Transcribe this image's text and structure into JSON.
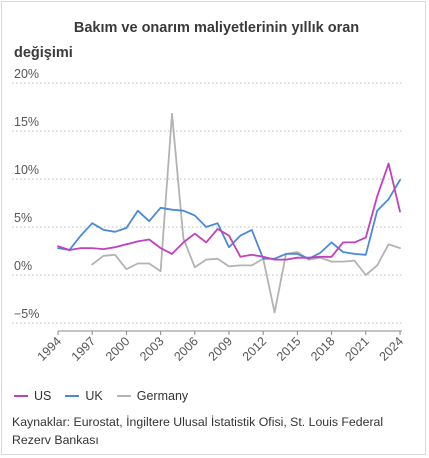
{
  "title_line1": "Bakım ve onarım maliyetlerinin yıllık oran",
  "title_line2": "değişimi",
  "source": "Kaynaklar: Eurostat, İngiltere Ulusal İstatistik Ofisi, St. Louis Federal Rezerv Bankası",
  "chart_data": {
    "type": "line",
    "title": "Bakım ve onarım maliyetlerinin yıllık oran değişimi",
    "xlabel": "",
    "ylabel": "",
    "xlim": [
      1994,
      2024
    ],
    "ylim": [
      -5,
      20
    ],
    "x_ticks": [
      "1994",
      "1997",
      "2000",
      "2003",
      "2006",
      "2009",
      "2012",
      "2015",
      "2018",
      "2021",
      "2024"
    ],
    "y_ticks": [
      {
        "v": 20,
        "label": "20%"
      },
      {
        "v": 15,
        "label": "15%"
      },
      {
        "v": 10,
        "label": "10%"
      },
      {
        "v": 5,
        "label": "5%"
      },
      {
        "v": 0,
        "label": "0%"
      },
      {
        "v": -5,
        "label": "−5%"
      }
    ],
    "legend_position": "bottom-left",
    "grid": "horizontal-dotted",
    "series": [
      {
        "name": "US",
        "color": "#c23fbf",
        "points": [
          [
            1994,
            3.0
          ],
          [
            1995,
            2.6
          ],
          [
            1996,
            2.8
          ],
          [
            1997,
            2.8
          ],
          [
            1998,
            2.7
          ],
          [
            1999,
            2.9
          ],
          [
            2000,
            3.2
          ],
          [
            2001,
            3.5
          ],
          [
            2002,
            3.7
          ],
          [
            2003,
            2.8
          ],
          [
            2004,
            2.2
          ],
          [
            2005,
            3.4
          ],
          [
            2006,
            4.3
          ],
          [
            2007,
            3.4
          ],
          [
            2008,
            4.8
          ],
          [
            2009,
            4.1
          ],
          [
            2010,
            1.9
          ],
          [
            2011,
            2.1
          ],
          [
            2012,
            1.9
          ],
          [
            2013,
            1.6
          ],
          [
            2014,
            1.6
          ],
          [
            2015,
            1.8
          ],
          [
            2016,
            1.8
          ],
          [
            2017,
            1.9
          ],
          [
            2018,
            1.9
          ],
          [
            2019,
            3.4
          ],
          [
            2020,
            3.4
          ],
          [
            2021,
            3.9
          ],
          [
            2022,
            8.2
          ],
          [
            2023,
            11.6
          ],
          [
            2024,
            6.6
          ]
        ]
      },
      {
        "name": "UK",
        "color": "#4a8ad8",
        "points": [
          [
            1994,
            2.8
          ],
          [
            1995,
            2.6
          ],
          [
            1996,
            4.1
          ],
          [
            1997,
            5.4
          ],
          [
            1998,
            4.7
          ],
          [
            1999,
            4.5
          ],
          [
            2000,
            4.9
          ],
          [
            2001,
            6.7
          ],
          [
            2002,
            5.6
          ],
          [
            2003,
            7.0
          ],
          [
            2004,
            6.8
          ],
          [
            2005,
            6.7
          ],
          [
            2006,
            6.2
          ],
          [
            2007,
            5.0
          ],
          [
            2008,
            5.4
          ],
          [
            2009,
            2.9
          ],
          [
            2010,
            4.1
          ],
          [
            2011,
            4.7
          ],
          [
            2012,
            1.7
          ],
          [
            2013,
            1.7
          ],
          [
            2014,
            2.2
          ],
          [
            2015,
            2.2
          ],
          [
            2016,
            1.7
          ],
          [
            2017,
            2.3
          ],
          [
            2018,
            3.4
          ],
          [
            2019,
            2.4
          ],
          [
            2020,
            2.2
          ],
          [
            2021,
            2.1
          ],
          [
            2022,
            6.7
          ],
          [
            2023,
            7.9
          ],
          [
            2024,
            9.9
          ]
        ]
      },
      {
        "name": "Germany",
        "color": "#b3b3b3",
        "points": [
          [
            1997,
            1.1
          ],
          [
            1998,
            2.0
          ],
          [
            1999,
            2.1
          ],
          [
            2000,
            0.6
          ],
          [
            2001,
            1.2
          ],
          [
            2002,
            1.2
          ],
          [
            2003,
            0.4
          ],
          [
            2004,
            16.8
          ],
          [
            2005,
            3.8
          ],
          [
            2006,
            0.8
          ],
          [
            2007,
            1.6
          ],
          [
            2008,
            1.7
          ],
          [
            2009,
            0.9
          ],
          [
            2010,
            1.0
          ],
          [
            2011,
            1.0
          ],
          [
            2012,
            1.7
          ],
          [
            2013,
            -3.9
          ],
          [
            2014,
            2.2
          ],
          [
            2015,
            2.4
          ],
          [
            2016,
            1.6
          ],
          [
            2017,
            1.8
          ],
          [
            2018,
            1.4
          ],
          [
            2019,
            1.4
          ],
          [
            2020,
            1.5
          ],
          [
            2021,
            0.0
          ],
          [
            2022,
            1.0
          ],
          [
            2023,
            3.2
          ],
          [
            2024,
            2.8
          ]
        ]
      }
    ]
  }
}
